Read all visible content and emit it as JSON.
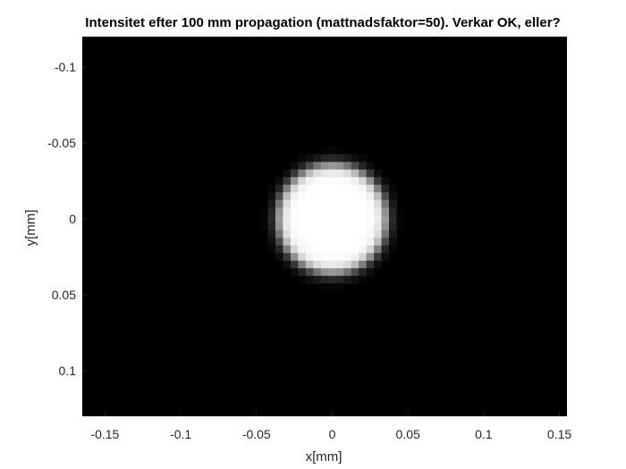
{
  "chart_data": {
    "type": "heatmap",
    "title": "Intensitet efter 100 mm propagation (mattnadsfaktor=50). Verkar OK, eller?",
    "xlabel": "x[mm]",
    "ylabel": "y[mm]",
    "xlim": [
      -0.165,
      0.155
    ],
    "ylim": [
      -0.12,
      0.13
    ],
    "y_direction": "reverse",
    "colormap": "gray",
    "xticks": [
      -0.15,
      -0.1,
      -0.05,
      0,
      0.05,
      0.1,
      0.15
    ],
    "xtick_labels": [
      "-0.15",
      "-0.1",
      "-0.05",
      "0",
      "0.05",
      "0.1",
      "0.15"
    ],
    "yticks": [
      -0.1,
      -0.05,
      0,
      0.05,
      0.1
    ],
    "ytick_labels": [
      "-0.1",
      "-0.05",
      "0",
      "0.05",
      "0.1"
    ],
    "spot": {
      "center_x": 0,
      "center_y": 0,
      "radius_mm": 0.036,
      "edge_softness_mm": 0.004,
      "pixel_pitch_mm": 0.005,
      "peak_intensity": 1,
      "background_intensity": 0
    },
    "background_color": "#000000",
    "spot_color": "#ffffff"
  }
}
